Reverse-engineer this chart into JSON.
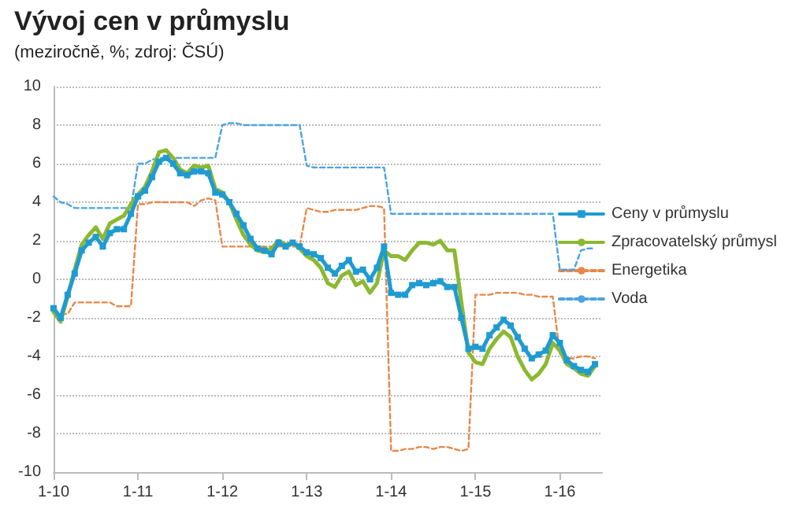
{
  "chart_data": {
    "type": "line",
    "title": "Vývoj cen v průmyslu",
    "subtitle": "(meziročně, %; zdroj: ČSÚ)",
    "x": [
      "2010-01",
      "2010-02",
      "2010-03",
      "2010-04",
      "2010-05",
      "2010-06",
      "2010-07",
      "2010-08",
      "2010-09",
      "2010-10",
      "2010-11",
      "2010-12",
      "2011-01",
      "2011-02",
      "2011-03",
      "2011-04",
      "2011-05",
      "2011-06",
      "2011-07",
      "2011-08",
      "2011-09",
      "2011-10",
      "2011-11",
      "2011-12",
      "2012-01",
      "2012-02",
      "2012-03",
      "2012-04",
      "2012-05",
      "2012-06",
      "2012-07",
      "2012-08",
      "2012-09",
      "2012-10",
      "2012-11",
      "2012-12",
      "2013-01",
      "2013-02",
      "2013-03",
      "2013-04",
      "2013-05",
      "2013-06",
      "2013-07",
      "2013-08",
      "2013-09",
      "2013-10",
      "2013-11",
      "2013-12",
      "2014-01",
      "2014-02",
      "2014-03",
      "2014-04",
      "2014-05",
      "2014-06",
      "2014-07",
      "2014-08",
      "2014-09",
      "2014-10",
      "2014-11",
      "2014-12",
      "2015-01",
      "2015-02",
      "2015-03",
      "2015-04",
      "2015-05",
      "2015-06",
      "2015-07",
      "2015-08",
      "2015-09",
      "2015-10",
      "2015-11",
      "2015-12",
      "2016-01",
      "2016-02",
      "2016-03",
      "2016-04",
      "2016-05",
      "2016-06"
    ],
    "series": [
      {
        "name": "Ceny v průmyslu",
        "color": "#1f9bd1",
        "marker": "square",
        "line_style": "solid",
        "values": [
          -1.5,
          -2.0,
          -0.8,
          0.3,
          1.5,
          1.9,
          2.2,
          1.7,
          2.4,
          2.6,
          2.6,
          3.4,
          4.3,
          4.6,
          5.3,
          6.1,
          6.3,
          6.0,
          5.5,
          5.4,
          5.6,
          5.6,
          5.5,
          4.5,
          4.4,
          4.0,
          3.4,
          2.8,
          2.1,
          1.6,
          1.5,
          1.3,
          1.9,
          1.7,
          1.9,
          1.7,
          1.4,
          1.3,
          1.1,
          0.6,
          0.3,
          0.7,
          1.0,
          0.4,
          0.5,
          0.0,
          0.6,
          1.7,
          -0.7,
          -0.8,
          -0.8,
          -0.3,
          -0.2,
          -0.3,
          -0.2,
          -0.1,
          -0.4,
          -0.4,
          -2.0,
          -3.6,
          -3.5,
          -3.6,
          -2.9,
          -2.5,
          -2.1,
          -2.4,
          -3.0,
          -3.6,
          -4.1,
          -3.9,
          -3.7,
          -2.9,
          -3.3,
          -4.2,
          -4.5,
          -4.7,
          -4.8,
          -4.4
        ]
      },
      {
        "name": "Zpracovatelský průmysl",
        "color": "#8cb832",
        "marker": "none",
        "line_style": "solid",
        "values": [
          -1.7,
          -2.2,
          -0.9,
          0.5,
          1.8,
          2.3,
          2.7,
          2.1,
          2.9,
          3.1,
          3.3,
          3.9,
          4.4,
          4.8,
          5.6,
          6.6,
          6.7,
          6.3,
          5.7,
          5.5,
          5.9,
          5.8,
          5.9,
          4.7,
          4.5,
          4.0,
          3.1,
          2.3,
          1.8,
          1.5,
          1.4,
          1.6,
          2.0,
          1.8,
          1.9,
          1.6,
          1.2,
          1.0,
          0.6,
          -0.2,
          -0.4,
          0.2,
          0.4,
          -0.3,
          -0.1,
          -0.7,
          -0.2,
          1.5,
          1.2,
          1.2,
          1.0,
          1.5,
          1.9,
          1.9,
          1.8,
          2.0,
          1.5,
          1.5,
          -1.2,
          -3.8,
          -4.3,
          -4.4,
          -3.6,
          -3.1,
          -2.7,
          -3.0,
          -4.0,
          -4.7,
          -5.2,
          -4.9,
          -4.4,
          -3.3,
          -3.7,
          -4.4,
          -4.6,
          -4.9,
          -5.0,
          -4.5
        ]
      },
      {
        "name": "Energetika",
        "color": "#e8874a",
        "marker": "none",
        "line_style": "dashed",
        "values": [
          -1.8,
          -1.8,
          -1.8,
          -1.2,
          -1.2,
          -1.2,
          -1.2,
          -1.2,
          -1.2,
          -1.4,
          -1.4,
          -1.4,
          3.9,
          3.9,
          4.0,
          4.0,
          4.0,
          4.0,
          4.0,
          4.0,
          3.8,
          4.1,
          4.2,
          4.1,
          1.7,
          1.7,
          1.7,
          1.7,
          1.7,
          1.7,
          1.7,
          1.7,
          1.7,
          1.7,
          1.7,
          1.7,
          3.7,
          3.6,
          3.5,
          3.5,
          3.6,
          3.6,
          3.6,
          3.6,
          3.7,
          3.8,
          3.8,
          3.7,
          -8.9,
          -8.9,
          -8.8,
          -8.8,
          -8.7,
          -8.7,
          -8.8,
          -8.7,
          -8.7,
          -8.8,
          -8.9,
          -8.8,
          -0.8,
          -0.8,
          -0.8,
          -0.7,
          -0.7,
          -0.7,
          -0.7,
          -0.8,
          -0.8,
          -0.9,
          -0.9,
          -0.9,
          -3.9,
          -4.1,
          -4.1,
          -4.0,
          -4.0,
          -4.1
        ]
      },
      {
        "name": "Voda",
        "color": "#4ba3e0",
        "marker": "none",
        "line_style": "dashed",
        "values": [
          4.3,
          4.0,
          3.9,
          3.7,
          3.7,
          3.7,
          3.7,
          3.7,
          3.7,
          3.7,
          3.7,
          3.7,
          6.0,
          6.0,
          6.2,
          6.3,
          6.3,
          6.3,
          6.3,
          6.3,
          6.3,
          6.3,
          6.3,
          6.3,
          8.0,
          8.1,
          8.1,
          8.0,
          8.0,
          8.0,
          8.0,
          8.0,
          8.0,
          8.0,
          8.0,
          8.0,
          5.9,
          5.8,
          5.8,
          5.8,
          5.8,
          5.8,
          5.8,
          5.8,
          5.8,
          5.8,
          5.8,
          5.8,
          3.4,
          3.4,
          3.4,
          3.4,
          3.4,
          3.4,
          3.4,
          3.4,
          3.4,
          3.4,
          3.4,
          3.4,
          3.4,
          3.4,
          3.4,
          3.4,
          3.4,
          3.4,
          3.4,
          3.4,
          3.4,
          3.4,
          3.4,
          3.4,
          0.5,
          0.5,
          0.5,
          1.5,
          1.6,
          1.6
        ]
      }
    ],
    "xlim": [
      "2010-01",
      "2016-07"
    ],
    "xticks": [
      {
        "value": "2010-01",
        "label": "1-10"
      },
      {
        "value": "2011-01",
        "label": "1-11"
      },
      {
        "value": "2012-01",
        "label": "1-12"
      },
      {
        "value": "2013-01",
        "label": "1-13"
      },
      {
        "value": "2014-01",
        "label": "1-14"
      },
      {
        "value": "2015-01",
        "label": "1-15"
      },
      {
        "value": "2016-01",
        "label": "1-16"
      }
    ],
    "ylim": [
      -10,
      10
    ],
    "yticks": [
      -10,
      -8,
      -6,
      -4,
      -2,
      0,
      2,
      4,
      6,
      8,
      10
    ],
    "grid": "y",
    "legend": "right"
  }
}
